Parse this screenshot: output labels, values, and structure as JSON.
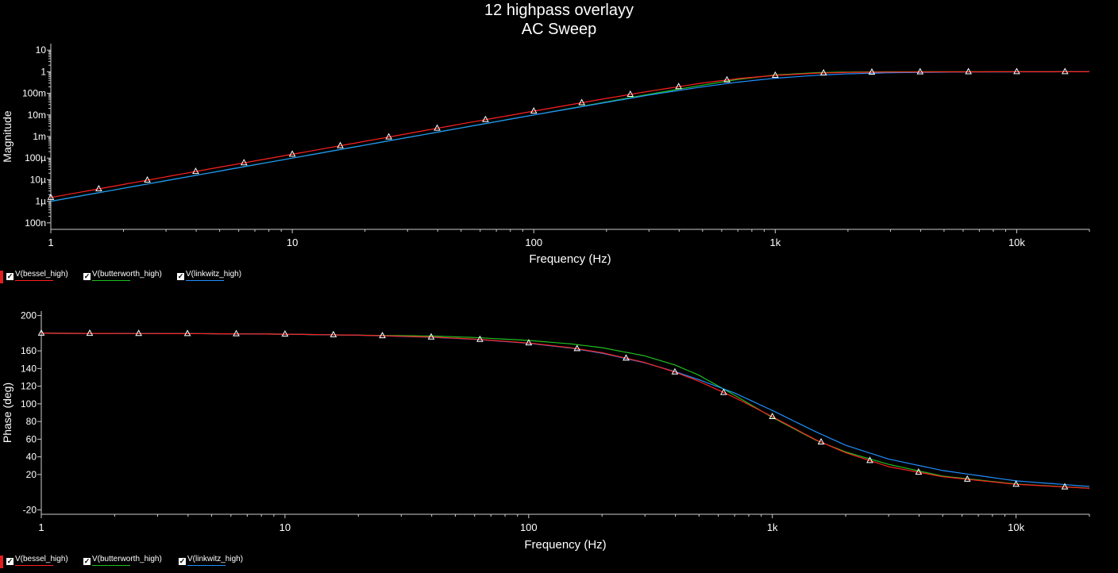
{
  "title_line1": "12 highpass overlayy",
  "title_line2": "AC Sweep",
  "legend": [
    {
      "label": "V(bessel_high)",
      "color": "#ff2020"
    },
    {
      "label": "V(butterworth_high)",
      "color": "#20c020"
    },
    {
      "label": "V(linkwitz_high)",
      "color": "#2090ff"
    }
  ],
  "check_glyph": "✓",
  "chart_data": [
    {
      "type": "line",
      "xscale": "log",
      "yscale": "log",
      "xlabel": "Frequency (Hz)",
      "ylabel": "Magnitude",
      "xlim": [
        1,
        20000
      ],
      "ylim": [
        5e-08,
        20
      ],
      "x_ticks": [
        {
          "value": 1,
          "label": "1"
        },
        {
          "value": 10,
          "label": "10"
        },
        {
          "value": 100,
          "label": "100"
        },
        {
          "value": 1000,
          "label": "1k"
        },
        {
          "value": 10000,
          "label": "10k"
        }
      ],
      "y_ticks": [
        {
          "value": 1e-07,
          "label": "100n"
        },
        {
          "value": 1e-06,
          "label": "1µ"
        },
        {
          "value": 1e-05,
          "label": "10µ"
        },
        {
          "value": 0.0001,
          "label": "100µ"
        },
        {
          "value": 0.001,
          "label": "1m"
        },
        {
          "value": 0.01,
          "label": "10m"
        },
        {
          "value": 0.1,
          "label": "100m"
        },
        {
          "value": 1,
          "label": "1"
        },
        {
          "value": 10,
          "label": "10"
        }
      ],
      "x": [
        1,
        2,
        5,
        10,
        20,
        50,
        100,
        200,
        300,
        500,
        700,
        1000,
        1500,
        2000,
        3000,
        5000,
        10000,
        20000
      ],
      "series": [
        {
          "name": "V(bessel_high)",
          "color": "#ff2020",
          "values": [
            1.5e-06,
            6e-06,
            3.8e-05,
            0.00015,
            0.0006,
            0.0038,
            0.015,
            0.058,
            0.125,
            0.3,
            0.48,
            0.68,
            0.86,
            0.93,
            0.97,
            0.99,
            1.0,
            1.0
          ]
        },
        {
          "name": "V(butterworth_high)",
          "color": "#20c020",
          "values": [
            1e-06,
            4e-06,
            2.5e-05,
            0.0001,
            0.0004,
            0.0025,
            0.01,
            0.04,
            0.09,
            0.24,
            0.44,
            0.71,
            0.91,
            0.97,
            0.99,
            1.0,
            1.0,
            1.0
          ]
        },
        {
          "name": "V(linkwitz_high)",
          "color": "#2090ff",
          "values": [
            1e-06,
            4e-06,
            2.5e-05,
            0.0001,
            0.0004,
            0.0025,
            0.0099,
            0.038,
            0.083,
            0.2,
            0.33,
            0.5,
            0.69,
            0.8,
            0.9,
            0.96,
            0.99,
            1.0
          ]
        }
      ],
      "markers": {
        "series": "V(bessel_high)",
        "x": [
          1,
          1.58,
          2.51,
          3.98,
          6.31,
          10,
          15.8,
          25.1,
          39.8,
          63.1,
          100,
          158,
          251,
          398,
          631,
          1000,
          1585,
          2512,
          3981,
          6310,
          10000,
          15849
        ]
      }
    },
    {
      "type": "line",
      "xscale": "log",
      "yscale": "linear",
      "xlabel": "Frequency (Hz)",
      "ylabel": "Phase (deg)",
      "xlim": [
        1,
        20000
      ],
      "ylim": [
        -25,
        205
      ],
      "x_ticks": [
        {
          "value": 1,
          "label": "1"
        },
        {
          "value": 10,
          "label": "10"
        },
        {
          "value": 100,
          "label": "100"
        },
        {
          "value": 1000,
          "label": "1k"
        },
        {
          "value": 10000,
          "label": "10k"
        }
      ],
      "y_ticks": [
        {
          "value": -20,
          "label": "-20"
        },
        {
          "value": 20,
          "label": "20"
        },
        {
          "value": 40,
          "label": "40"
        },
        {
          "value": 60,
          "label": "60"
        },
        {
          "value": 80,
          "label": "80"
        },
        {
          "value": 100,
          "label": "100"
        },
        {
          "value": 120,
          "label": "120"
        },
        {
          "value": 140,
          "label": "140"
        },
        {
          "value": 160,
          "label": "160"
        },
        {
          "value": 200,
          "label": "200"
        }
      ],
      "x": [
        1,
        5,
        10,
        20,
        40,
        60,
        100,
        150,
        200,
        300,
        400,
        500,
        700,
        1000,
        1500,
        2000,
        3000,
        5000,
        10000,
        20000
      ],
      "series": [
        {
          "name": "V(bessel_high)",
          "color": "#ff2020",
          "values": [
            179.9,
            179.4,
            178.9,
            177.8,
            175.6,
            173.3,
            168.9,
            163.4,
            157.9,
            146.8,
            135.8,
            125.5,
            107.2,
            85.5,
            59.6,
            44.6,
            28.9,
            17.5,
            8.9,
            4.4
          ]
        },
        {
          "name": "V(butterworth_high)",
          "color": "#20c020",
          "values": [
            179.9,
            179.4,
            178.9,
            177.7,
            176.8,
            175.1,
            171.8,
            167.8,
            163.6,
            154.3,
            143.8,
            132.4,
            109.8,
            84.6,
            59.2,
            45.5,
            31.5,
            18.2,
            9.2,
            4.5
          ]
        },
        {
          "name": "V(linkwitz_high)",
          "color": "#2090ff",
          "values": [
            179.9,
            179.4,
            178.9,
            177.7,
            175.4,
            173.1,
            168.6,
            163.0,
            157.3,
            146.4,
            136.4,
            127.3,
            112.3,
            92.5,
            68.7,
            53.1,
            37.5,
            24.5,
            12.8,
            6.5
          ]
        }
      ],
      "markers": {
        "series": "V(bessel_high)",
        "x": [
          1,
          1.58,
          2.51,
          3.98,
          6.31,
          10,
          15.8,
          25.1,
          39.8,
          63.1,
          100,
          158,
          251,
          398,
          631,
          1000,
          1585,
          2512,
          3981,
          6310,
          10000,
          15849
        ]
      }
    }
  ]
}
